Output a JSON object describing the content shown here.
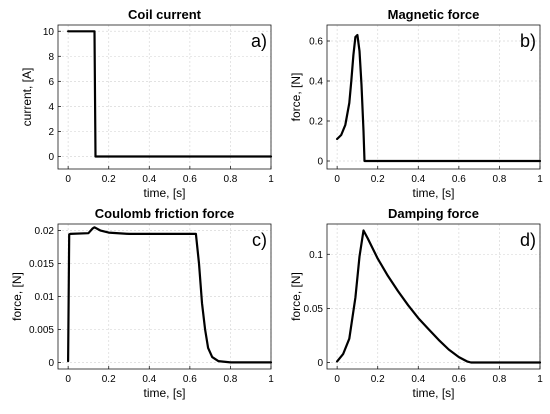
{
  "chart_data": [
    {
      "type": "line",
      "title": "Coil current",
      "panel_tag": "a)",
      "xlabel": "time, [s]",
      "ylabel": "current, [A]",
      "xlim": [
        -0.05,
        1.0
      ],
      "ylim": [
        -1,
        10.5
      ],
      "xticks": [
        0,
        0.2,
        0.4,
        0.6,
        0.8,
        1
      ],
      "xtick_labels": [
        "0",
        "0.2",
        "0.4",
        "0.6",
        "0.8",
        "1"
      ],
      "yticks": [
        0,
        2,
        4,
        6,
        8,
        10
      ],
      "ytick_labels": [
        "0",
        "2",
        "4",
        "6",
        "8",
        "10"
      ],
      "grid": true,
      "series": [
        {
          "x": [
            0,
            0.13,
            0.135,
            1.0
          ],
          "y": [
            10,
            10,
            0,
            0
          ]
        }
      ]
    },
    {
      "type": "line",
      "title": "Magnetic force",
      "panel_tag": "b)",
      "xlabel": "time, [s]",
      "ylabel": "force, [N]",
      "xlim": [
        -0.05,
        1.0
      ],
      "ylim": [
        -0.04,
        0.68
      ],
      "xticks": [
        0,
        0.2,
        0.4,
        0.6,
        0.8,
        1
      ],
      "xtick_labels": [
        "0",
        "0.2",
        "0.4",
        "0.6",
        "0.8",
        "1"
      ],
      "yticks": [
        0,
        0.2,
        0.4,
        0.6
      ],
      "ytick_labels": [
        "0",
        "0.2",
        "0.4",
        "0.6"
      ],
      "grid": true,
      "series": [
        {
          "x": [
            0,
            0.02,
            0.04,
            0.06,
            0.07,
            0.08,
            0.09,
            0.1,
            0.11,
            0.12,
            0.13,
            0.135,
            1.0
          ],
          "y": [
            0.11,
            0.13,
            0.18,
            0.29,
            0.4,
            0.53,
            0.62,
            0.63,
            0.55,
            0.38,
            0.15,
            0,
            0
          ]
        }
      ]
    },
    {
      "type": "line",
      "title": "Coulomb friction force",
      "panel_tag": "c)",
      "xlabel": "time, [s]",
      "ylabel": "force, [N]",
      "xlim": [
        -0.05,
        1.0
      ],
      "ylim": [
        -0.001,
        0.021
      ],
      "xticks": [
        0,
        0.2,
        0.4,
        0.6,
        0.8,
        1
      ],
      "xtick_labels": [
        "0",
        "0.2",
        "0.4",
        "0.6",
        "0.8",
        "1"
      ],
      "yticks": [
        0,
        0.005,
        0.01,
        0.015,
        0.02
      ],
      "ytick_labels": [
        "0",
        "0.005",
        "0.01",
        "0.015",
        "0.02"
      ],
      "grid": true,
      "series": [
        {
          "x": [
            0,
            0.005,
            0.01,
            0.1,
            0.12,
            0.13,
            0.16,
            0.2,
            0.3,
            0.5,
            0.63,
            0.645,
            0.66,
            0.675,
            0.69,
            0.71,
            0.74,
            0.8,
            1.0
          ],
          "y": [
            0.0002,
            0.0194,
            0.0195,
            0.0196,
            0.0203,
            0.0205,
            0.02,
            0.0197,
            0.0195,
            0.0195,
            0.0195,
            0.015,
            0.009,
            0.005,
            0.0022,
            0.0008,
            0.0002,
            0,
            0
          ]
        }
      ]
    },
    {
      "type": "line",
      "title": "Damping force",
      "panel_tag": "d)",
      "xlabel": "time, [s]",
      "ylabel": "force, [N]",
      "xlim": [
        -0.05,
        1.0
      ],
      "ylim": [
        -0.006,
        0.128
      ],
      "xticks": [
        0,
        0.2,
        0.4,
        0.6,
        0.8,
        1
      ],
      "xtick_labels": [
        "0",
        "0.2",
        "0.4",
        "0.6",
        "0.8",
        "1"
      ],
      "yticks": [
        0,
        0.05,
        0.1
      ],
      "ytick_labels": [
        "0",
        "0.05",
        "0.1"
      ],
      "grid": true,
      "series": [
        {
          "x": [
            0,
            0.03,
            0.06,
            0.09,
            0.11,
            0.13,
            0.15,
            0.2,
            0.25,
            0.3,
            0.35,
            0.4,
            0.45,
            0.5,
            0.55,
            0.6,
            0.64,
            0.66,
            1.0
          ],
          "y": [
            0.001,
            0.008,
            0.022,
            0.06,
            0.098,
            0.122,
            0.115,
            0.096,
            0.08,
            0.066,
            0.053,
            0.041,
            0.031,
            0.021,
            0.012,
            0.005,
            0.001,
            0,
            0
          ]
        }
      ]
    }
  ]
}
